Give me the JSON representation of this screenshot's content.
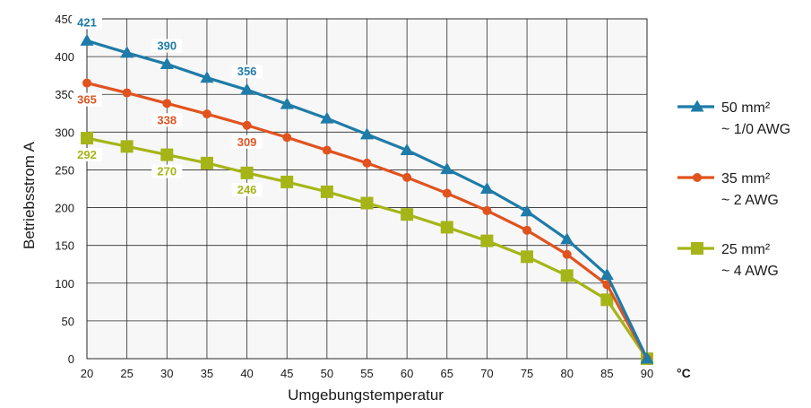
{
  "chart_data": {
    "type": "line",
    "xlabel": "Umgebungstemperatur",
    "ylabel": "Betriebsstrom A",
    "x_unit": "°C",
    "x": [
      20,
      25,
      30,
      35,
      40,
      45,
      50,
      55,
      60,
      65,
      70,
      75,
      80,
      85,
      90
    ],
    "xlim": [
      20,
      90
    ],
    "ylim": [
      0,
      450
    ],
    "x_ticks": [
      20,
      25,
      30,
      35,
      40,
      45,
      50,
      55,
      60,
      65,
      70,
      75,
      80,
      85,
      90
    ],
    "y_ticks": [
      0,
      50,
      100,
      150,
      200,
      250,
      300,
      350,
      400,
      450
    ],
    "grid": true,
    "legend_position": "right",
    "series": [
      {
        "name": "50 mm²",
        "subname": "~ 1/0 AWG",
        "color": "#1f7ba8",
        "marker": "triangle",
        "values": [
          421,
          405,
          390,
          372,
          356,
          337,
          318,
          297,
          276,
          251,
          225,
          195,
          158,
          111,
          0
        ],
        "data_labels": [
          {
            "x": 20,
            "text": "421"
          },
          {
            "x": 30,
            "text": "390"
          },
          {
            "x": 40,
            "text": "356"
          }
        ]
      },
      {
        "name": "35 mm²",
        "subname": "~ 2 AWG",
        "color": "#e0531f",
        "marker": "circle",
        "values": [
          365,
          352,
          338,
          324,
          309,
          293,
          276,
          259,
          240,
          219,
          196,
          170,
          138,
          98,
          0
        ],
        "data_labels": [
          {
            "x": 20,
            "text": "365"
          },
          {
            "x": 30,
            "text": "338"
          },
          {
            "x": 40,
            "text": "309"
          }
        ]
      },
      {
        "name": "25 mm²",
        "subname": "~ 4 AWG",
        "color": "#a5b517",
        "marker": "square",
        "values": [
          292,
          281,
          270,
          259,
          246,
          234,
          221,
          206,
          191,
          174,
          156,
          135,
          110,
          78,
          0
        ],
        "data_labels": [
          {
            "x": 20,
            "text": "292"
          },
          {
            "x": 30,
            "text": "270"
          },
          {
            "x": 40,
            "text": "246"
          }
        ]
      }
    ]
  }
}
